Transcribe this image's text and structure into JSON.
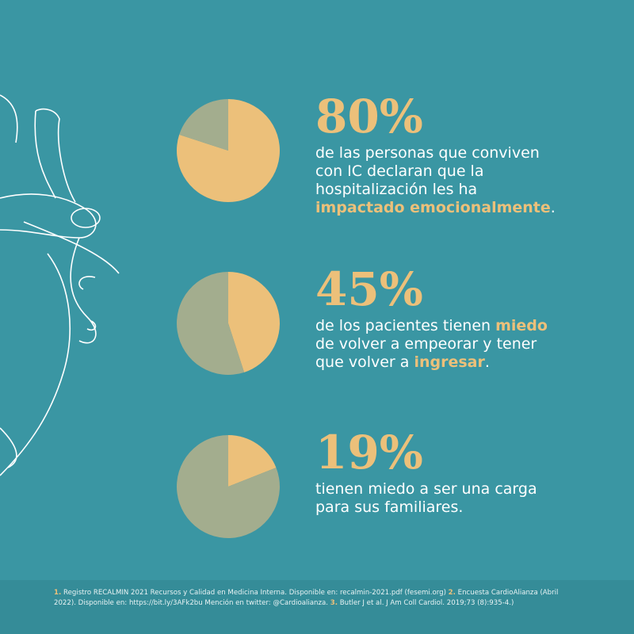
{
  "chart_data": [
    {
      "type": "pie",
      "values": [
        80,
        20
      ],
      "value_labels": [
        "80%",
        null
      ],
      "colors": [
        "#ecc07a",
        "#a3ad8e"
      ],
      "description": [
        {
          "text": "de las personas que conviven con IC declaran que la hospitalización les ha "
        },
        {
          "text": "impactado emocionalmente",
          "highlight": true
        },
        {
          "text": "."
        }
      ]
    },
    {
      "type": "pie",
      "values": [
        45,
        55
      ],
      "value_labels": [
        "45%",
        null
      ],
      "colors": [
        "#ecc07a",
        "#a3ad8e"
      ],
      "description": [
        {
          "text": "de los pacientes tienen "
        },
        {
          "text": "miedo",
          "highlight": true
        },
        {
          "text": " de volver a empeorar y tener que volver a "
        },
        {
          "text": "ingresar",
          "highlight": true
        },
        {
          "text": "."
        }
      ]
    },
    {
      "type": "pie",
      "values": [
        19,
        81
      ],
      "value_labels": [
        "19%",
        null
      ],
      "colors": [
        "#ecc07a",
        "#a3ad8e"
      ],
      "description": [
        {
          "text": "tienen miedo a ser una carga para sus familiares."
        }
      ]
    }
  ],
  "footnotes": [
    {
      "number": "1.",
      "text": "Registro RECALMIN 2021 Recursos y Calidad en Medicina Interna. Disponible en: recalmin-2021.pdf (fesemi.org)"
    },
    {
      "number": "2.",
      "text": "Encuesta CardioAlianza (Abril 2022). Disponible en: https://bit.ly/3AFk2bu Mención en twitter: @Cardioalianza."
    },
    {
      "number": "3.",
      "text": "Butler J et al. J Am Coll Cardiol. 2019;73 (8):935-4.)"
    }
  ]
}
